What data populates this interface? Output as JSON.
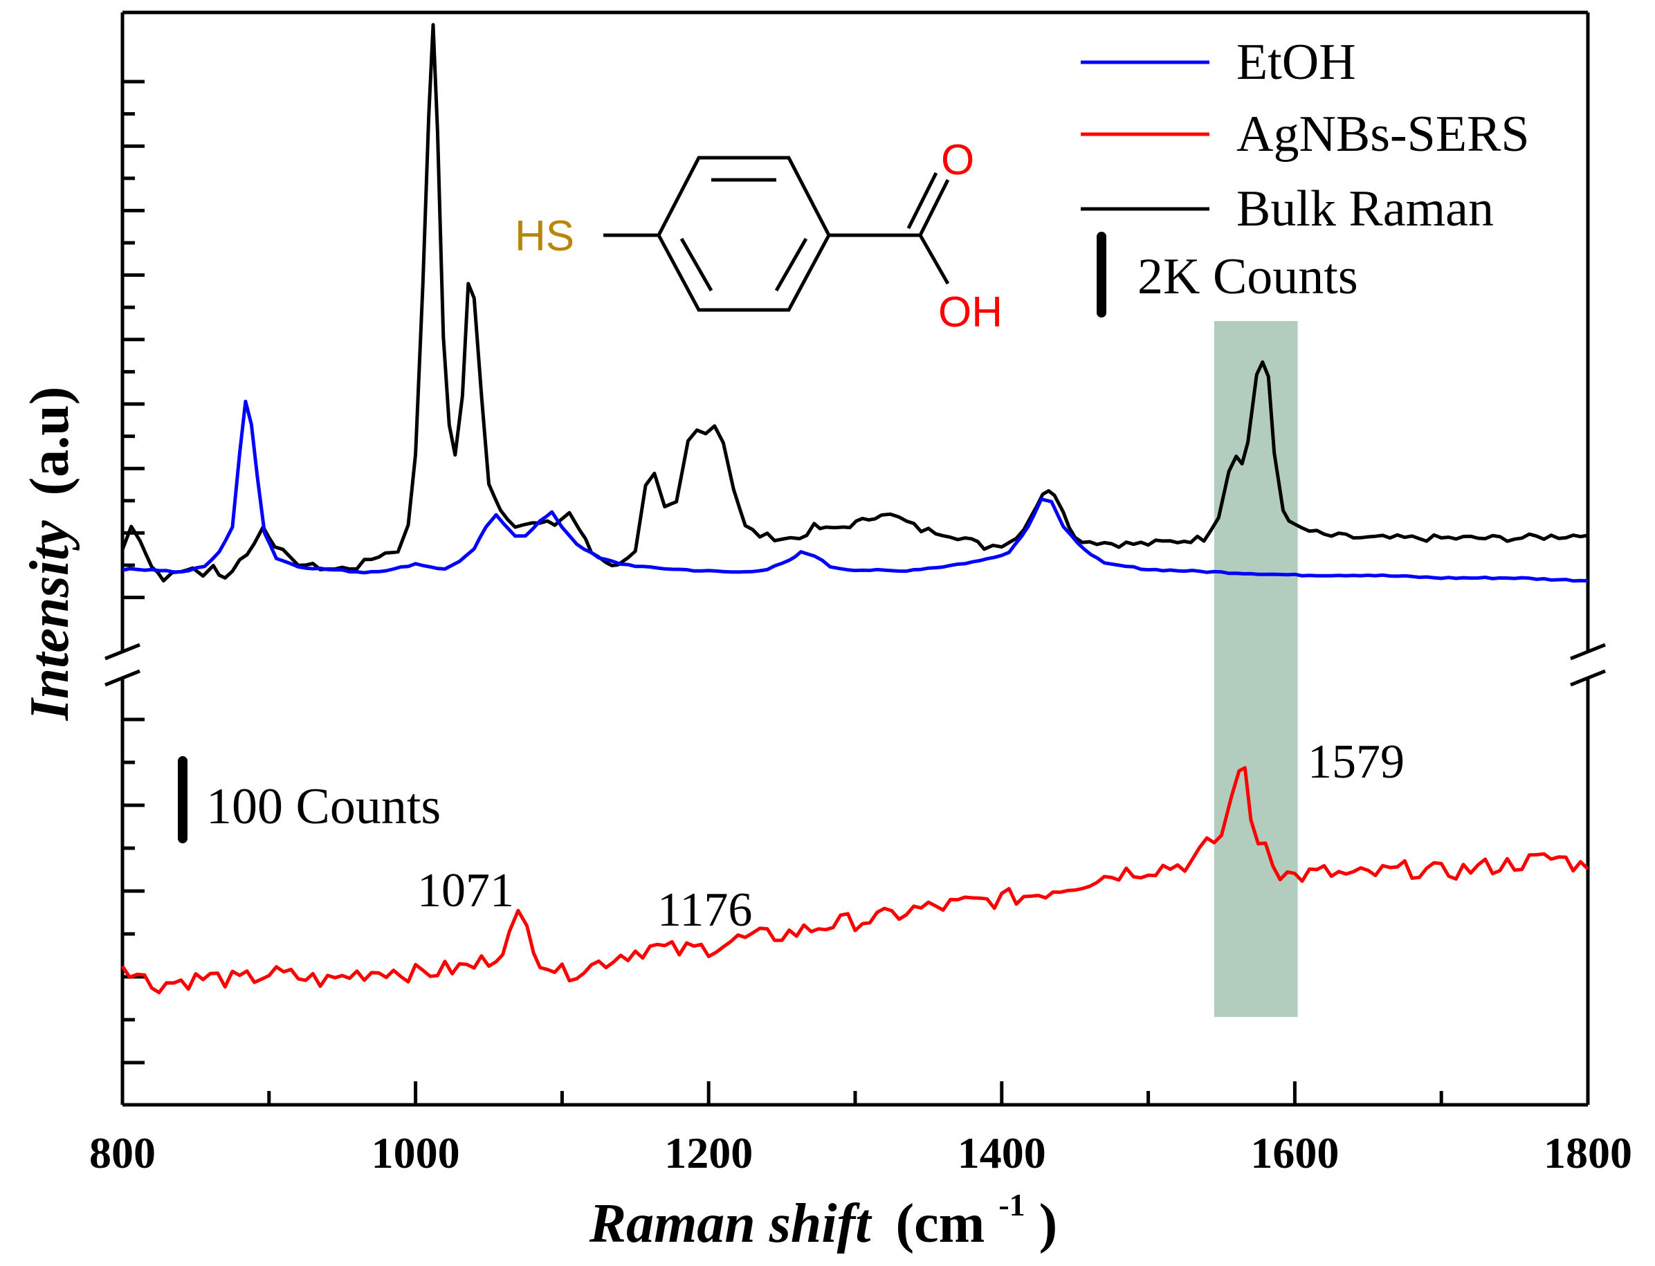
{
  "chart_data": {
    "type": "line",
    "title": "",
    "xlabel_italic": "Raman shift",
    "xlabel_unit": "(cm",
    "xlabel_sup": "-1",
    "xlabel_close": ")",
    "ylabel_italic": "Intensity",
    "ylabel_unit": "(a.u)",
    "xlim": [
      800,
      1800
    ],
    "xticks": [
      800,
      1000,
      1200,
      1400,
      1600,
      1800
    ],
    "xtick_labels": [
      "800",
      "1000",
      "1200",
      "1400",
      "1600",
      "1800"
    ],
    "broken_y_axis": true,
    "legend": {
      "position": "top-right",
      "entries": [
        {
          "label": "EtOH",
          "color": "#0000ff"
        },
        {
          "label": "AgNBs-SERS",
          "color": "#ff0000"
        },
        {
          "label": "Bulk Raman",
          "color": "#000000"
        }
      ]
    },
    "scale_bars": {
      "upper": "2K Counts",
      "lower": "100 Counts"
    },
    "highlight_band": {
      "x_range": [
        1545,
        1602
      ],
      "color": "#b2cdbe"
    },
    "peak_labels": [
      "1071",
      "1176",
      "1579"
    ],
    "molecule": {
      "thiol": "HS",
      "carbonyl_o": "O",
      "hydroxyl": "OH"
    },
    "upper_panel": {
      "units": "relative intensity (0-1)",
      "series": [
        {
          "name": "Bulk Raman",
          "color": "#000000",
          "points": [
            [
              800,
              0.08
            ],
            [
              806,
              0.12
            ],
            [
              812,
              0.1
            ],
            [
              820,
              0.05
            ],
            [
              828,
              0.03
            ],
            [
              840,
              0.04
            ],
            [
              848,
              0.05
            ],
            [
              855,
              0.03
            ],
            [
              862,
              0.05
            ],
            [
              870,
              0.03
            ],
            [
              880,
              0.06
            ],
            [
              890,
              0.09
            ],
            [
              896,
              0.12
            ],
            [
              904,
              0.09
            ],
            [
              915,
              0.06
            ],
            [
              930,
              0.05
            ],
            [
              945,
              0.045
            ],
            [
              960,
              0.05
            ],
            [
              975,
              0.07
            ],
            [
              988,
              0.08
            ],
            [
              995,
              0.12
            ],
            [
              1000,
              0.25
            ],
            [
              1005,
              0.55
            ],
            [
              1009,
              0.85
            ],
            [
              1012,
              1.0
            ],
            [
              1015,
              0.82
            ],
            [
              1019,
              0.45
            ],
            [
              1023,
              0.3
            ],
            [
              1027,
              0.25
            ],
            [
              1032,
              0.35
            ],
            [
              1036,
              0.55
            ],
            [
              1040,
              0.52
            ],
            [
              1045,
              0.35
            ],
            [
              1050,
              0.2
            ],
            [
              1058,
              0.15
            ],
            [
              1068,
              0.125
            ],
            [
              1080,
              0.125
            ],
            [
              1095,
              0.125
            ],
            [
              1105,
              0.145
            ],
            [
              1112,
              0.115
            ],
            [
              1120,
              0.075
            ],
            [
              1130,
              0.06
            ],
            [
              1138,
              0.05
            ],
            [
              1145,
              0.07
            ],
            [
              1150,
              0.08
            ],
            [
              1157,
              0.19
            ],
            [
              1163,
              0.21
            ],
            [
              1170,
              0.15
            ],
            [
              1178,
              0.16
            ],
            [
              1186,
              0.27
            ],
            [
              1192,
              0.29
            ],
            [
              1198,
              0.29
            ],
            [
              1204,
              0.3
            ],
            [
              1210,
              0.27
            ],
            [
              1217,
              0.19
            ],
            [
              1225,
              0.12
            ],
            [
              1235,
              0.105
            ],
            [
              1250,
              0.1
            ],
            [
              1262,
              0.1
            ],
            [
              1272,
              0.12
            ],
            [
              1280,
              0.115
            ],
            [
              1292,
              0.12
            ],
            [
              1305,
              0.13
            ],
            [
              1318,
              0.145
            ],
            [
              1330,
              0.135
            ],
            [
              1345,
              0.115
            ],
            [
              1360,
              0.11
            ],
            [
              1375,
              0.1
            ],
            [
              1388,
              0.085
            ],
            [
              1400,
              0.09
            ],
            [
              1410,
              0.1
            ],
            [
              1420,
              0.14
            ],
            [
              1428,
              0.18
            ],
            [
              1436,
              0.18
            ],
            [
              1442,
              0.15
            ],
            [
              1450,
              0.1
            ],
            [
              1460,
              0.095
            ],
            [
              1480,
              0.09
            ],
            [
              1500,
              0.09
            ],
            [
              1520,
              0.095
            ],
            [
              1538,
              0.1
            ],
            [
              1548,
              0.14
            ],
            [
              1555,
              0.22
            ],
            [
              1560,
              0.25
            ],
            [
              1564,
              0.23
            ],
            [
              1568,
              0.27
            ],
            [
              1574,
              0.39
            ],
            [
              1578,
              0.41
            ],
            [
              1582,
              0.38
            ],
            [
              1586,
              0.25
            ],
            [
              1592,
              0.15
            ],
            [
              1600,
              0.12
            ],
            [
              1620,
              0.105
            ],
            [
              1650,
              0.1
            ],
            [
              1700,
              0.1
            ],
            [
              1750,
              0.1
            ],
            [
              1790,
              0.105
            ],
            [
              1800,
              0.105
            ]
          ]
        },
        {
          "name": "EtOH",
          "color": "#0000ff",
          "points": [
            [
              800,
              0.045
            ],
            [
              820,
              0.045
            ],
            [
              840,
              0.04
            ],
            [
              856,
              0.05
            ],
            [
              866,
              0.075
            ],
            [
              875,
              0.12
            ],
            [
              880,
              0.25
            ],
            [
              884,
              0.34
            ],
            [
              888,
              0.3
            ],
            [
              892,
              0.21
            ],
            [
              897,
              0.11
            ],
            [
              905,
              0.065
            ],
            [
              920,
              0.05
            ],
            [
              940,
              0.045
            ],
            [
              965,
              0.04
            ],
            [
              985,
              0.045
            ],
            [
              1000,
              0.055
            ],
            [
              1010,
              0.05
            ],
            [
              1020,
              0.045
            ],
            [
              1030,
              0.06
            ],
            [
              1040,
              0.08
            ],
            [
              1048,
              0.12
            ],
            [
              1055,
              0.14
            ],
            [
              1060,
              0.125
            ],
            [
              1068,
              0.105
            ],
            [
              1075,
              0.105
            ],
            [
              1085,
              0.13
            ],
            [
              1093,
              0.145
            ],
            [
              1100,
              0.12
            ],
            [
              1110,
              0.09
            ],
            [
              1125,
              0.065
            ],
            [
              1140,
              0.055
            ],
            [
              1160,
              0.048
            ],
            [
              1180,
              0.045
            ],
            [
              1200,
              0.042
            ],
            [
              1220,
              0.04
            ],
            [
              1240,
              0.045
            ],
            [
              1255,
              0.06
            ],
            [
              1263,
              0.075
            ],
            [
              1272,
              0.07
            ],
            [
              1283,
              0.05
            ],
            [
              1295,
              0.045
            ],
            [
              1330,
              0.042
            ],
            [
              1360,
              0.05
            ],
            [
              1385,
              0.06
            ],
            [
              1405,
              0.075
            ],
            [
              1418,
              0.12
            ],
            [
              1427,
              0.17
            ],
            [
              1434,
              0.165
            ],
            [
              1442,
              0.12
            ],
            [
              1452,
              0.09
            ],
            [
              1470,
              0.055
            ],
            [
              1500,
              0.045
            ],
            [
              1550,
              0.04
            ],
            [
              1600,
              0.035
            ],
            [
              1650,
              0.035
            ],
            [
              1700,
              0.03
            ],
            [
              1750,
              0.03
            ],
            [
              1800,
              0.025
            ]
          ]
        }
      ]
    },
    "lower_panel": {
      "units": "relative intensity (0-1)",
      "series": [
        {
          "name": "AgNBs-SERS",
          "color": "#ff0000",
          "points": [
            [
              800,
              0.35
            ],
            [
              820,
              0.29
            ],
            [
              840,
              0.3
            ],
            [
              860,
              0.31
            ],
            [
              880,
              0.3
            ],
            [
              900,
              0.32
            ],
            [
              920,
              0.31
            ],
            [
              940,
              0.3
            ],
            [
              960,
              0.32
            ],
            [
              980,
              0.33
            ],
            [
              1000,
              0.32
            ],
            [
              1020,
              0.33
            ],
            [
              1040,
              0.34
            ],
            [
              1055,
              0.37
            ],
            [
              1064,
              0.42
            ],
            [
              1070,
              0.47
            ],
            [
              1076,
              0.44
            ],
            [
              1085,
              0.36
            ],
            [
              1100,
              0.32
            ],
            [
              1120,
              0.34
            ],
            [
              1140,
              0.37
            ],
            [
              1160,
              0.39
            ],
            [
              1180,
              0.38
            ],
            [
              1200,
              0.39
            ],
            [
              1220,
              0.41
            ],
            [
              1240,
              0.42
            ],
            [
              1260,
              0.43
            ],
            [
              1280,
              0.45
            ],
            [
              1300,
              0.46
            ],
            [
              1320,
              0.47
            ],
            [
              1340,
              0.49
            ],
            [
              1360,
              0.5
            ],
            [
              1380,
              0.51
            ],
            [
              1400,
              0.52
            ],
            [
              1420,
              0.53
            ],
            [
              1440,
              0.55
            ],
            [
              1460,
              0.57
            ],
            [
              1480,
              0.59
            ],
            [
              1500,
              0.6
            ],
            [
              1520,
              0.61
            ],
            [
              1530,
              0.62
            ],
            [
              1540,
              0.66
            ],
            [
              1550,
              0.69
            ],
            [
              1557,
              0.79
            ],
            [
              1562,
              0.88
            ],
            [
              1566,
              0.85
            ],
            [
              1570,
              0.73
            ],
            [
              1575,
              0.68
            ],
            [
              1580,
              0.67
            ],
            [
              1590,
              0.59
            ],
            [
              1600,
              0.58
            ],
            [
              1620,
              0.59
            ],
            [
              1640,
              0.58
            ],
            [
              1660,
              0.59
            ],
            [
              1680,
              0.6
            ],
            [
              1700,
              0.59
            ],
            [
              1720,
              0.6
            ],
            [
              1740,
              0.61
            ],
            [
              1760,
              0.62
            ],
            [
              1780,
              0.63
            ],
            [
              1800,
              0.6
            ]
          ]
        }
      ]
    }
  }
}
